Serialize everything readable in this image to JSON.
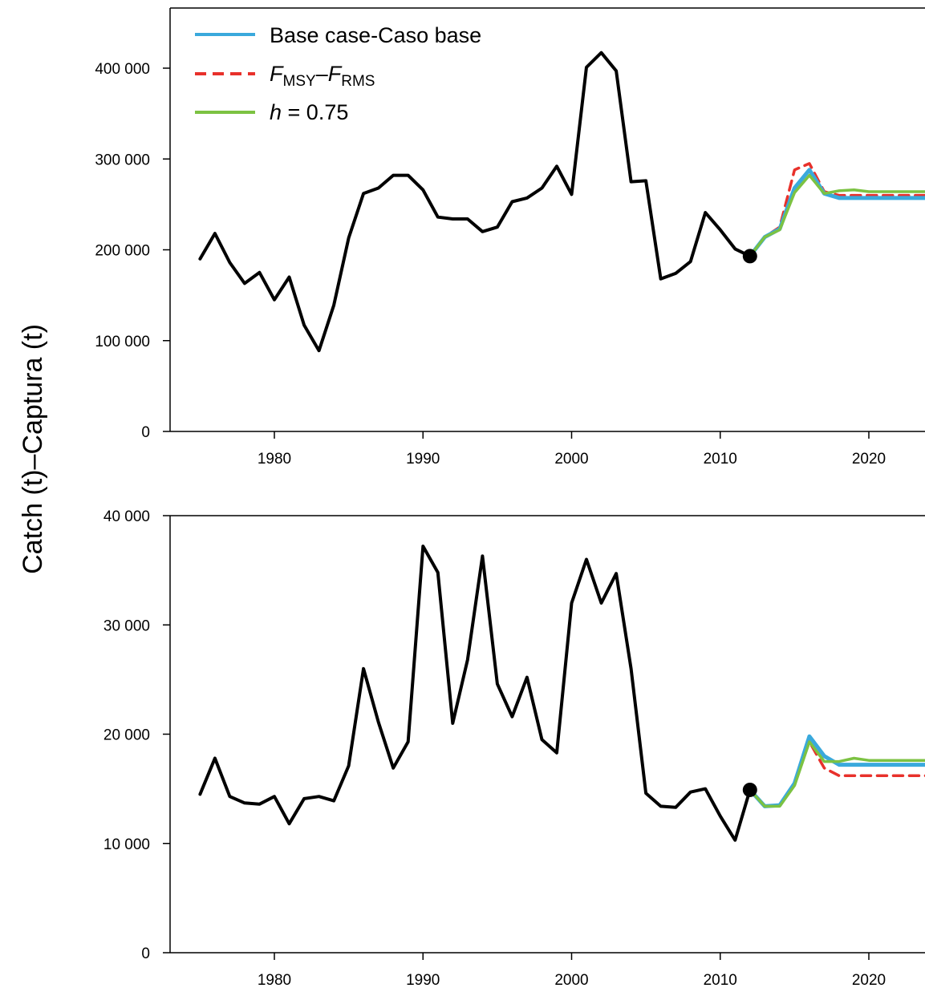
{
  "figure": {
    "ylabel": "Catch (t)–Captura (t)",
    "colors": {
      "history": "#000000",
      "base": "#3aa9dc",
      "fmsy": "#e8312b",
      "h075": "#7cc242"
    }
  },
  "legend": {
    "base_label": "Base case-Caso base",
    "fmsy_prefix": "F",
    "fmsy_sub1": "MSY",
    "fmsy_sep": "–",
    "fmsy_prefix2": "F",
    "fmsy_sub2": "RMS",
    "h_var": "h",
    "h_rest": " = 0.75"
  },
  "chart_data": [
    {
      "type": "line",
      "title": "",
      "xlabel": "",
      "ylabel": "Catch (t)–Captura (t)",
      "xlim": [
        1973,
        2024
      ],
      "ylim": [
        0,
        400000
      ],
      "x_ticks": [
        1980,
        1990,
        2000,
        2010,
        2020
      ],
      "y_ticks": [
        0,
        100000,
        200000,
        300000,
        400000
      ],
      "y_tick_labels": [
        "0",
        "100 000",
        "200 000",
        "300 000",
        "400 000"
      ],
      "legend_position": "top-left",
      "grid": false,
      "marker": {
        "x": 2012,
        "y": 193000
      },
      "series": [
        {
          "name": "",
          "key": "history",
          "x": [
            1975,
            1976,
            1977,
            1978,
            1979,
            1980,
            1981,
            1982,
            1983,
            1984,
            1985,
            1986,
            1987,
            1988,
            1989,
            1990,
            1991,
            1992,
            1993,
            1994,
            1995,
            1996,
            1997,
            1998,
            1999,
            2000,
            2001,
            2002,
            2003,
            2004,
            2005,
            2006,
            2007,
            2008,
            2009,
            2010,
            2011,
            2012
          ],
          "y": [
            190000,
            218000,
            186000,
            163000,
            175000,
            145000,
            170000,
            117000,
            89000,
            139000,
            213000,
            262000,
            268000,
            282000,
            282000,
            266000,
            236000,
            234000,
            234000,
            220000,
            225000,
            253000,
            257000,
            268000,
            292000,
            261000,
            401000,
            417000,
            397000,
            275000,
            276000,
            168000,
            174000,
            187000,
            241000,
            222000,
            201000,
            193000
          ]
        },
        {
          "name": "Base case-Caso base",
          "key": "base",
          "x": [
            2012,
            2013,
            2014,
            2015,
            2016,
            2017,
            2018,
            2019,
            2020,
            2021,
            2022,
            2023,
            2024
          ],
          "y": [
            193000,
            214000,
            223000,
            268000,
            288000,
            262000,
            257000,
            257000,
            257000,
            257000,
            257000,
            257000,
            257000
          ]
        },
        {
          "name": "FMSY–FRMS",
          "key": "fmsy",
          "x": [
            2012,
            2013,
            2014,
            2015,
            2016,
            2017,
            2018,
            2019,
            2020,
            2021,
            2022,
            2023,
            2024
          ],
          "y": [
            193000,
            214000,
            225000,
            288000,
            295000,
            264000,
            260000,
            260000,
            260000,
            260000,
            260000,
            260000,
            260000
          ]
        },
        {
          "name": "h = 0.75",
          "key": "h075",
          "x": [
            2012,
            2013,
            2014,
            2015,
            2016,
            2017,
            2018,
            2019,
            2020,
            2021,
            2022,
            2023,
            2024
          ],
          "y": [
            193000,
            214000,
            222000,
            263000,
            282000,
            262000,
            265000,
            266000,
            264000,
            264000,
            264000,
            264000,
            264000
          ]
        }
      ]
    },
    {
      "type": "line",
      "title": "",
      "xlabel": "",
      "ylabel": "Catch (t)–Captura (t)",
      "xlim": [
        1973,
        2024
      ],
      "ylim": [
        0,
        40000
      ],
      "x_ticks": [
        1980,
        1990,
        2000,
        2010,
        2020
      ],
      "y_ticks": [
        0,
        10000,
        20000,
        30000,
        40000
      ],
      "y_tick_labels": [
        "0",
        "10 000",
        "20 000",
        "30 000",
        "40 000"
      ],
      "grid": false,
      "marker": {
        "x": 2012,
        "y": 14900
      },
      "series": [
        {
          "name": "",
          "key": "history",
          "x": [
            1975,
            1976,
            1977,
            1978,
            1979,
            1980,
            1981,
            1982,
            1983,
            1984,
            1985,
            1986,
            1987,
            1988,
            1989,
            1990,
            1991,
            1992,
            1993,
            1994,
            1995,
            1996,
            1997,
            1998,
            1999,
            2000,
            2001,
            2002,
            2003,
            2004,
            2005,
            2006,
            2007,
            2008,
            2009,
            2010,
            2011,
            2012
          ],
          "y": [
            14500,
            17800,
            14300,
            13700,
            13600,
            14300,
            11800,
            14100,
            14300,
            13900,
            17100,
            26000,
            21100,
            16900,
            19300,
            37200,
            34800,
            21000,
            26800,
            36300,
            24600,
            21600,
            25200,
            19500,
            18300,
            32000,
            36000,
            32000,
            34700,
            26000,
            14600,
            13400,
            13300,
            14700,
            15000,
            12500,
            10300,
            14900
          ]
        },
        {
          "name": "Base case-Caso base",
          "key": "base",
          "x": [
            2012,
            2013,
            2014,
            2015,
            2016,
            2017,
            2018,
            2019,
            2020,
            2021,
            2022,
            2023,
            2024
          ],
          "y": [
            14900,
            13400,
            13500,
            15500,
            19800,
            18000,
            17200,
            17200,
            17200,
            17200,
            17200,
            17200,
            17200
          ]
        },
        {
          "name": "FMSY–FRMS",
          "key": "fmsy",
          "x": [
            2012,
            2013,
            2014,
            2015,
            2016,
            2017,
            2018,
            2019,
            2020,
            2021,
            2022,
            2023,
            2024
          ],
          "y": [
            14900,
            13400,
            13500,
            15600,
            19300,
            16900,
            16200,
            16200,
            16200,
            16200,
            16200,
            16200,
            16200
          ]
        },
        {
          "name": "h = 0.75",
          "key": "h075",
          "x": [
            2012,
            2013,
            2014,
            2015,
            2016,
            2017,
            2018,
            2019,
            2020,
            2021,
            2022,
            2023,
            2024
          ],
          "y": [
            14900,
            13400,
            13400,
            15300,
            19300,
            17500,
            17500,
            17800,
            17600,
            17600,
            17600,
            17600,
            17600
          ]
        }
      ]
    }
  ]
}
